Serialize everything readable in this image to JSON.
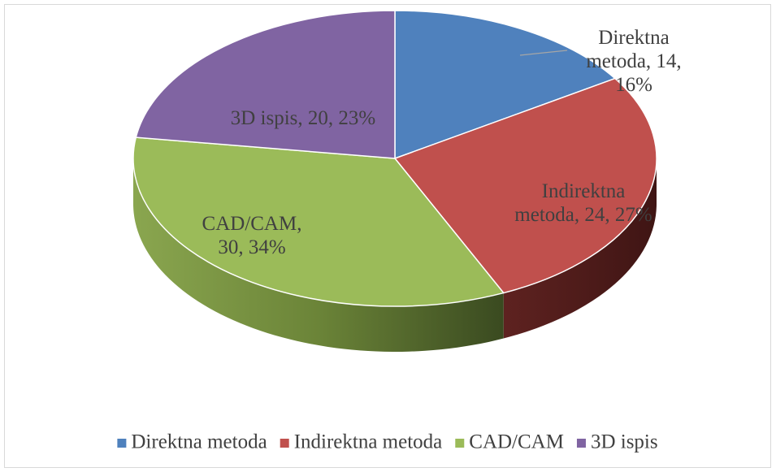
{
  "chart_data": {
    "type": "pie3d",
    "categories": [
      "Direktna metoda",
      "Indirektna metoda",
      "CAD/CAM",
      "3D ispis"
    ],
    "values": [
      14,
      24,
      30,
      20
    ],
    "value_labels": [
      "Direktna metoda, 14, 16%",
      "Indirektna metoda, 24, 27%",
      "CAD/CAM, 30, 34%",
      "3D ispis, 20, 23%"
    ],
    "colors": [
      "#4f81bd",
      "#c0504d",
      "#9bbb59",
      "#8064a2"
    ],
    "legend": "bottom"
  }
}
